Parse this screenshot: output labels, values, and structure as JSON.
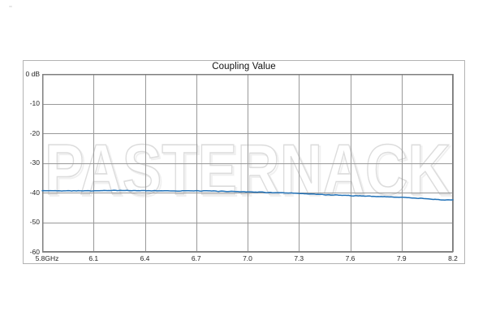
{
  "chart_data": {
    "type": "line",
    "title": "Coupling Value",
    "xlabel": "",
    "ylabel": "",
    "x_unit": "GHz",
    "y_unit": "dB",
    "xlim": [
      5.8,
      8.2
    ],
    "ylim": [
      -60,
      0
    ],
    "grid": true,
    "legend": "none",
    "watermark": "PASTERNACK",
    "x_ticks": [
      "5.8GHz",
      "6.1",
      "6.4",
      "6.7",
      "7.0",
      "7.3",
      "7.6",
      "7.9",
      "8.2"
    ],
    "x_tick_values": [
      5.8,
      6.1,
      6.4,
      6.7,
      7.0,
      7.3,
      7.6,
      7.9,
      8.2
    ],
    "y_ticks": [
      "0 dB",
      "-10",
      "-20",
      "-30",
      "-40",
      "-50",
      "-60"
    ],
    "y_tick_values": [
      0,
      -10,
      -20,
      -30,
      -40,
      -50,
      -60
    ],
    "series": [
      {
        "name": "Coupling Value",
        "color": "#2272b8",
        "x": [
          5.8,
          5.95,
          6.1,
          6.25,
          6.4,
          6.55,
          6.7,
          6.85,
          7.0,
          7.15,
          7.3,
          7.45,
          7.6,
          7.75,
          7.9,
          8.0,
          8.1,
          8.15,
          8.2
        ],
        "y": [
          -39.4,
          -39.35,
          -39.4,
          -39.3,
          -39.35,
          -39.4,
          -39.45,
          -39.55,
          -39.7,
          -40.0,
          -40.35,
          -40.7,
          -41.0,
          -41.3,
          -41.6,
          -41.9,
          -42.3,
          -42.55,
          -42.45
        ],
        "noise_db": 0.12
      }
    ]
  },
  "colors": {
    "trace_blue": "#2272b8",
    "gridline": "#999999",
    "plot_border": "#7f7f7f",
    "outer_border": "#b3b3b3",
    "text": "#262626",
    "watermark_outline": "#dcdcdc"
  }
}
